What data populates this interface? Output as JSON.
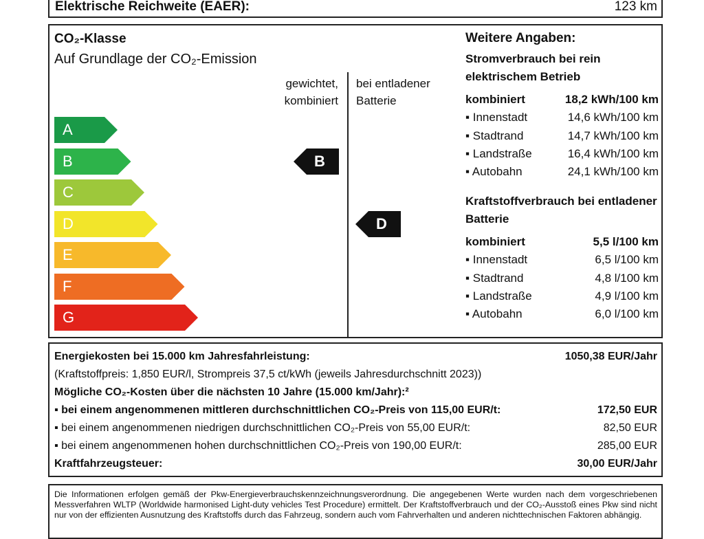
{
  "range": {
    "label": "Elektrische Reichweite (EAER):",
    "value": "123 km"
  },
  "co2": {
    "title": "CO₂-Klasse",
    "subtitle": "Auf Grundlage der CO₂-Emission",
    "col_weighted": "gewichtet, kombiniert",
    "col_empty": "bei entladener Batterie",
    "classes": [
      {
        "label": "A",
        "color": "#1a9a48"
      },
      {
        "label": "B",
        "color": "#2db34a"
      },
      {
        "label": "C",
        "color": "#9dc83b"
      },
      {
        "label": "D",
        "color": "#f2e52a"
      },
      {
        "label": "E",
        "color": "#f7b92b"
      },
      {
        "label": "F",
        "color": "#ee6d23"
      },
      {
        "label": "G",
        "color": "#e2231a"
      }
    ],
    "weighted_class": "B",
    "empty_class": "D"
  },
  "more": {
    "title": "Weitere Angaben:",
    "power_title": "Stromverbrauch bei rein elektrischem Betrieb",
    "power": [
      {
        "k": "kombiniert",
        "v": "18,2 kWh/100 km"
      },
      {
        "k": "▪ Innenstadt",
        "v": "14,6 kWh/100 km"
      },
      {
        "k": "▪ Stadtrand",
        "v": "14,7 kWh/100 km"
      },
      {
        "k": "▪ Landstraße",
        "v": "16,4 kWh/100 km"
      },
      {
        "k": "▪ Autobahn",
        "v": "24,1 kWh/100 km"
      }
    ],
    "fuel_title": "Kraftstoffverbrauch bei entladener Batterie",
    "fuel": [
      {
        "k": "kombiniert",
        "v": "5,5 l/100 km"
      },
      {
        "k": "▪ Innenstadt",
        "v": "6,5 l/100 km"
      },
      {
        "k": "▪ Stadtrand",
        "v": "4,8 l/100 km"
      },
      {
        "k": "▪ Landstraße",
        "v": "4,9 l/100 km"
      },
      {
        "k": "▪ Autobahn",
        "v": "6,0 l/100 km"
      }
    ]
  },
  "costs": {
    "energy_label": "Energiekosten bei 15.000 km Jahresfahrleistung:",
    "energy_value": "1050,38 EUR/Jahr",
    "prices": "(Kraftstoffpreis: 1,850 EUR/l, Strompreis 37,5 ct/kWh (jeweils Jahresdurchschnitt 2023))",
    "co2_costs_label": "Mögliche CO₂-Kosten über die nächsten 10 Jahre (15.000 km/Jahr):²",
    "mid_label": "▪ bei einem angenommenen mittleren durchschnittlichen CO₂-Preis von 115,00 EUR/t:",
    "mid_value": "172,50 EUR",
    "low_label": "▪ bei einem angenommenen niedrigen durchschnittlichen CO₂-Preis von 55,00 EUR/t:",
    "low_value": "82,50 EUR",
    "high_label": "▪ bei einem angenommenen hohen durchschnittlichen CO₂-Preis von 190,00 EUR/t:",
    "high_value": "285,00 EUR",
    "tax_label": "Kraftfahrzeugsteuer:",
    "tax_value": "30,00 EUR/Jahr"
  },
  "footnote": "Die Informationen erfolgen gemäß der Pkw-Energieverbrauchskennzeichnungsverordnung. Die angegebenen Werte wurden nach dem vorgeschriebenen Messverfahren WLTP (Worldwide harmonised Light-duty vehicles Test Procedure) ermittelt. Der Kraftstoffverbrauch und der CO₂-Ausstoß eines Pkw sind nicht nur von der effizienten Ausnutzung des Kraftstoffs durch das Fahrzeug, sondern auch vom Fahrverhalten und anderen nichttechnischen Faktoren abhängig."
}
